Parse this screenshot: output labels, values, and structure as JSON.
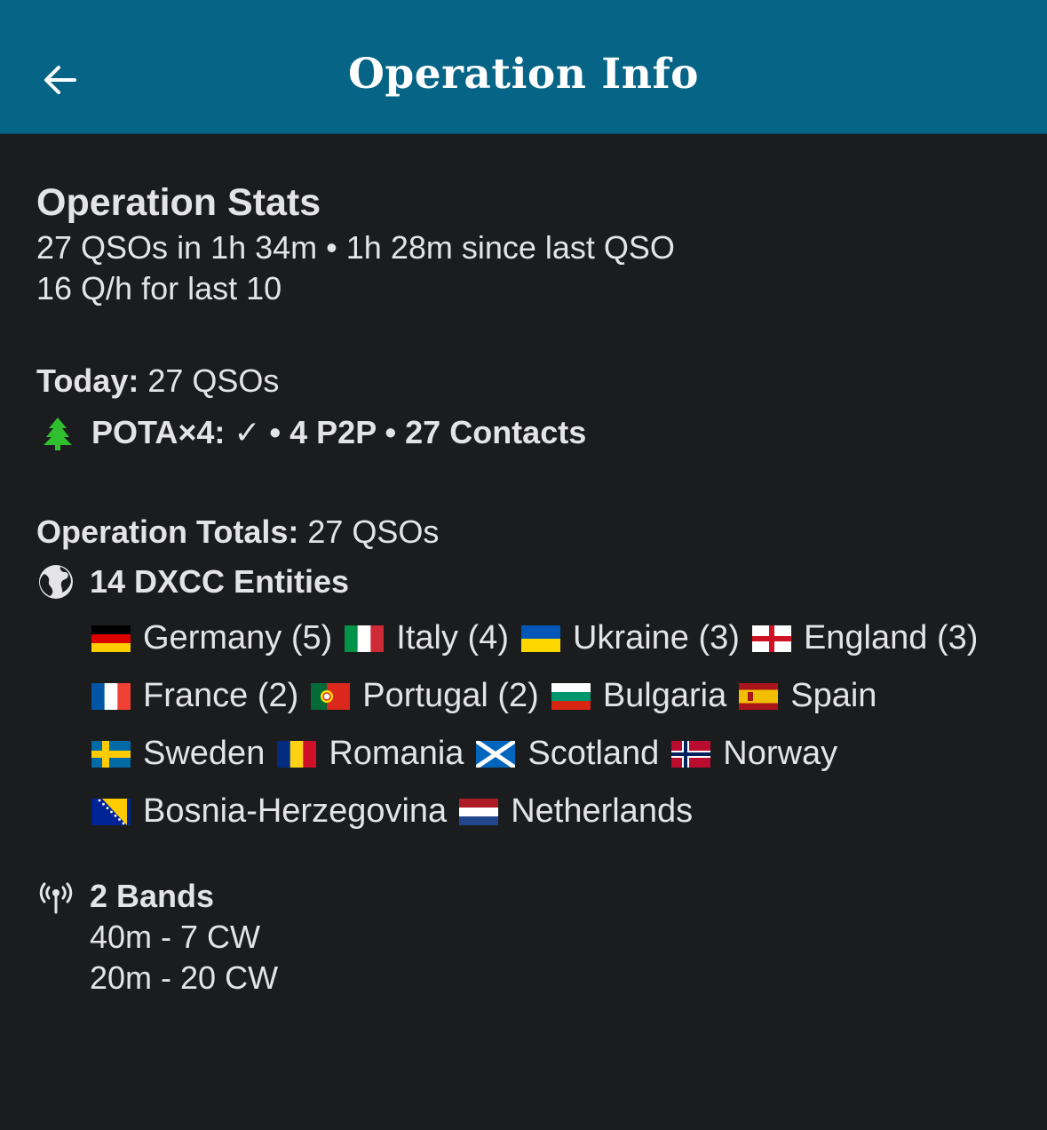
{
  "header": {
    "title": "Operation Info",
    "back_icon": "arrow-left-icon"
  },
  "stats": {
    "heading": "Operation Stats",
    "line1": "27 QSOs in 1h 34m • 1h 28m since last QSO",
    "line2": "16 Q/h for last 10"
  },
  "today": {
    "label": "Today:",
    "value": " 27 QSOs",
    "pota": "POTA×4: ✓ • 4 P2P • 27 Contacts",
    "pota_icon": "tree-icon",
    "pota_icon_color": "#2fbf2f"
  },
  "totals": {
    "label": "Operation Totals:",
    "value": " 27 QSOs",
    "dxcc": "14 DXCC Entities",
    "dxcc_icon": "globe-icon"
  },
  "countries": [
    [
      {
        "flag": "de",
        "name": "Germany (5)"
      },
      {
        "flag": "it",
        "name": "Italy (4)"
      },
      {
        "flag": "ua",
        "name": "Ukraine (3)"
      },
      {
        "flag": "en",
        "name": "England (3)"
      }
    ],
    [
      {
        "flag": "fr",
        "name": "France (2)"
      },
      {
        "flag": "pt",
        "name": "Portugal (2)"
      },
      {
        "flag": "bg",
        "name": "Bulgaria"
      },
      {
        "flag": "es",
        "name": "Spain"
      }
    ],
    [
      {
        "flag": "se",
        "name": "Sweden"
      },
      {
        "flag": "ro",
        "name": "Romania"
      },
      {
        "flag": "sc",
        "name": "Scotland"
      },
      {
        "flag": "no",
        "name": "Norway"
      }
    ],
    [
      {
        "flag": "ba",
        "name": "Bosnia-Herzegovina"
      },
      {
        "flag": "nl",
        "name": "Netherlands"
      }
    ]
  ],
  "bands": {
    "heading": "2 Bands",
    "icon": "antenna-icon",
    "items": [
      "40m -  7 CW",
      "20m -  20 CW"
    ]
  }
}
